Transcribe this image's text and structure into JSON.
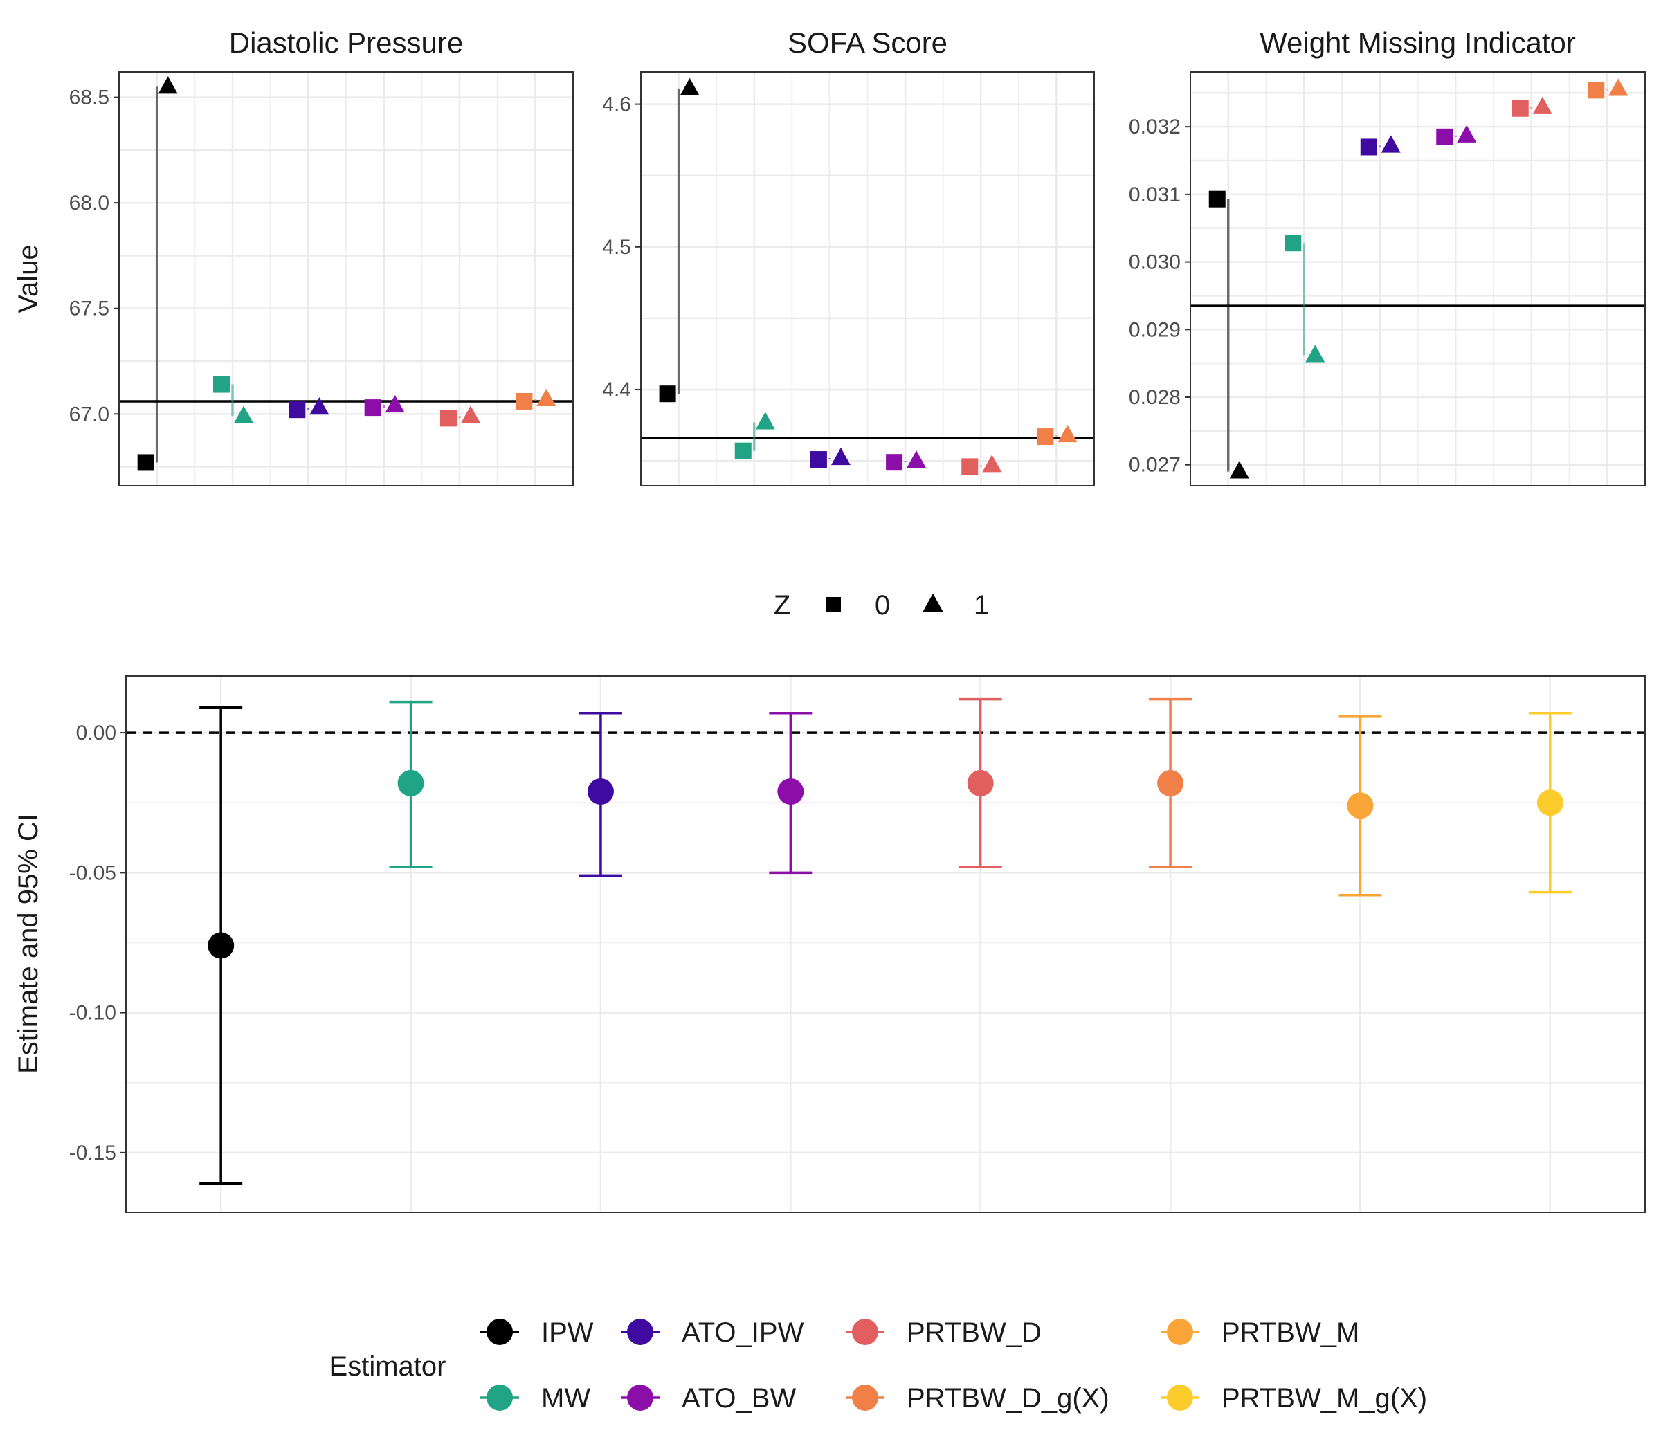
{
  "chart_data": [
    {
      "type": "scatter",
      "title": "Diastolic Pressure",
      "ylabel": "Value",
      "ylim": [
        66.66,
        68.62
      ],
      "yticks": [
        "67.0",
        "67.5",
        "68.0",
        "68.5"
      ],
      "target": 67.06,
      "series": [
        {
          "estimator": "IPW",
          "z0": 66.77,
          "z1": 68.55
        },
        {
          "estimator": "MW",
          "z0": 67.14,
          "z1": 66.99
        },
        {
          "estimator": "ATO_IPW",
          "z0": 67.02,
          "z1": 67.03
        },
        {
          "estimator": "ATO_BW",
          "z0": 67.03,
          "z1": 67.04
        },
        {
          "estimator": "PRTBW_D",
          "z0": 66.98,
          "z1": 66.99
        },
        {
          "estimator": "PRTBW_D_g(X)",
          "z0": 67.06,
          "z1": 67.07
        }
      ]
    },
    {
      "type": "scatter",
      "title": "SOFA Score",
      "ylabel": "",
      "ylim": [
        4.3326,
        4.6226
      ],
      "yticks": [
        "4.4",
        "4.5",
        "4.6"
      ],
      "target": 4.366,
      "series": [
        {
          "estimator": "IPW",
          "z0": 4.397,
          "z1": 4.611
        },
        {
          "estimator": "MW",
          "z0": 4.357,
          "z1": 4.377
        },
        {
          "estimator": "ATO_IPW",
          "z0": 4.351,
          "z1": 4.352
        },
        {
          "estimator": "ATO_BW",
          "z0": 4.349,
          "z1": 4.35
        },
        {
          "estimator": "PRTBW_D",
          "z0": 4.346,
          "z1": 4.347
        },
        {
          "estimator": "PRTBW_D_g(X)",
          "z0": 4.367,
          "z1": 4.368
        }
      ]
    },
    {
      "type": "scatter",
      "title": "Weight Missing Indicator",
      "ylabel": "",
      "ylim": [
        0.02669,
        0.03281
      ],
      "yticks": [
        "0.027",
        "0.028",
        "0.029",
        "0.030",
        "0.031",
        "0.032"
      ],
      "target": 0.02935,
      "series": [
        {
          "estimator": "IPW",
          "z0": 0.03093,
          "z1": 0.0269
        },
        {
          "estimator": "MW",
          "z0": 0.03028,
          "z1": 0.02862
        },
        {
          "estimator": "ATO_IPW",
          "z0": 0.0317,
          "z1": 0.03172
        },
        {
          "estimator": "ATO_BW",
          "z0": 0.03185,
          "z1": 0.03187
        },
        {
          "estimator": "PRTBW_D",
          "z0": 0.03227,
          "z1": 0.03229
        },
        {
          "estimator": "PRTBW_D_g(X)",
          "z0": 0.03254,
          "z1": 0.03256
        }
      ]
    },
    {
      "type": "errorbar",
      "title": "",
      "ylabel": "Estimate and 95% CI",
      "ylim": [
        -0.1713,
        0.0203
      ],
      "yticks": [
        "-0.15",
        "-0.10",
        "-0.05",
        "0.00"
      ],
      "reference_line": 0.0,
      "categories": [
        "IPW",
        "MW",
        "ATO_IPW",
        "ATO_BW",
        "PRTBW_D",
        "PRTBW_D_g(X)",
        "PRTBW_M",
        "PRTBW_M_g(X)"
      ],
      "estimates": [
        -0.076,
        -0.018,
        -0.021,
        -0.021,
        -0.018,
        -0.018,
        -0.026,
        -0.025
      ],
      "lower": [
        -0.161,
        -0.048,
        -0.051,
        -0.05,
        -0.048,
        -0.048,
        -0.058,
        -0.057
      ],
      "upper": [
        0.009,
        0.011,
        0.007,
        0.007,
        0.012,
        0.012,
        0.006,
        0.007
      ]
    }
  ],
  "legend_z": {
    "title": "Z",
    "items": [
      "0",
      "1"
    ]
  },
  "legend_estimator": {
    "title": "Estimator",
    "items": [
      "IPW",
      "MW",
      "ATO_IPW",
      "ATO_BW",
      "PRTBW_D",
      "PRTBW_D_g(X)",
      "PRTBW_M",
      "PRTBW_M_g(X)"
    ]
  },
  "colors": {
    "IPW": "#000000",
    "MW": "#21a386",
    "ATO_IPW": "#3f0a9f",
    "ATO_BW": "#8c0ea8",
    "PRTBW_D": "#e25f60",
    "PRTBW_D_g(X)": "#f07f48",
    "PRTBW_M": "#f9a537",
    "PRTBW_M_g(X)": "#fccc2c"
  }
}
